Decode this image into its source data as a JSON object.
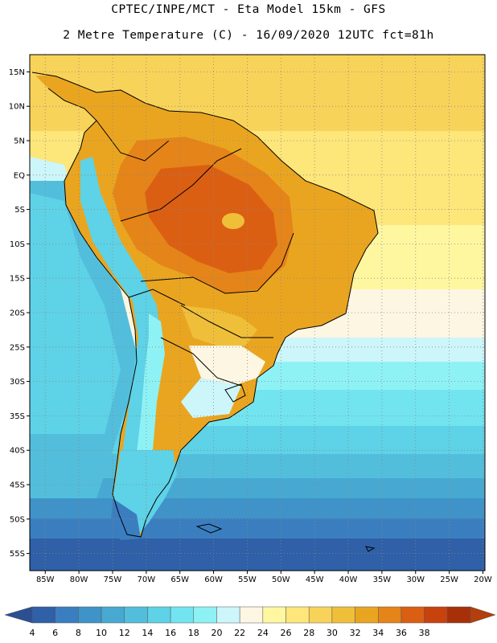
{
  "header": {
    "title_line1": "CPTEC/INPE/MCT -  Eta Model 15km - GFS",
    "title_line2": "2 Metre Temperature (C) - 16/09/2020 12UTC fct=81h"
  },
  "map": {
    "lat_labels": [
      "15N",
      "10N",
      "5N",
      "EQ",
      "5S",
      "10S",
      "15S",
      "20S",
      "25S",
      "30S",
      "35S",
      "40S",
      "45S",
      "50S",
      "55S"
    ],
    "lon_labels": [
      "85W",
      "80W",
      "75W",
      "70W",
      "65W",
      "60W",
      "55W",
      "50W",
      "45W",
      "40W",
      "35W",
      "30W",
      "25W",
      "20W"
    ],
    "lat_values": [
      15,
      10,
      5,
      0,
      -5,
      -10,
      -15,
      -20,
      -25,
      -30,
      -35,
      -40,
      -45,
      -50,
      -55
    ],
    "lon_values": [
      -85,
      -80,
      -75,
      -70,
      -65,
      -60,
      -55,
      -50,
      -45,
      -40,
      -35,
      -30,
      -25,
      -20
    ]
  },
  "colorbar": {
    "labels": [
      "4",
      "6",
      "8",
      "10",
      "12",
      "14",
      "16",
      "18",
      "20",
      "22",
      "24",
      "26",
      "28",
      "30",
      "32",
      "34",
      "36",
      "38"
    ],
    "colors": [
      "#2f60a8",
      "#3a7ec0",
      "#3f93c8",
      "#47a9d2",
      "#52bedc",
      "#5ed2e6",
      "#72e4ef",
      "#8ef2f5",
      "#cdf6fa",
      "#fdf6e2",
      "#fff7a0",
      "#fde67a",
      "#f8d35a",
      "#f0bf3a",
      "#eaa520",
      "#e58418",
      "#db5f12",
      "#c8420e",
      "#a83008"
    ],
    "low_color": "#2a4f92",
    "high_color": "#b43e0c"
  }
}
